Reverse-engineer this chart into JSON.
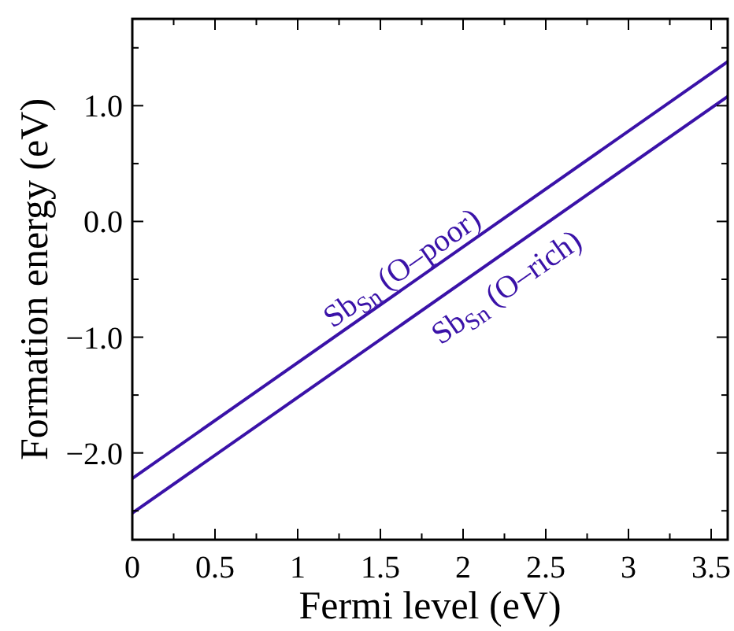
{
  "chart_data": {
    "type": "line",
    "xlabel": "Fermi level (eV)",
    "ylabel": "Formation energy (eV)",
    "x": [
      0,
      3.6
    ],
    "series": [
      {
        "name": "Sb$_{Sn}$ (O–poor)",
        "color": "#3a12a8",
        "values": [
          -2.22,
          1.38
        ]
      },
      {
        "name": "Sb$_{Sn}$ (O–rich)",
        "color": "#3a12a8",
        "values": [
          -2.52,
          1.08
        ]
      }
    ],
    "xlim": [
      0,
      3.6
    ],
    "ylim": [
      -2.75,
      1.75
    ],
    "xticks": [
      0,
      {
        "value": 0.25,
        "label": null
      },
      0.5,
      {
        "value": 0.75,
        "label": null
      },
      1,
      {
        "value": 1.25,
        "label": null
      },
      1.5,
      {
        "value": 1.75,
        "label": null
      },
      2,
      {
        "value": 2.25,
        "label": null
      },
      2.5,
      {
        "value": 2.75,
        "label": null
      },
      3,
      {
        "value": 3.25,
        "label": null
      },
      3.5
    ],
    "yticks": [
      {
        "value": -2.5,
        "label": null
      },
      {
        "value": -2,
        "label": "−2.0"
      },
      {
        "value": -1.5,
        "label": null
      },
      {
        "value": -1,
        "label": "−1.0"
      },
      {
        "value": -0.5,
        "label": null
      },
      {
        "value": 0,
        "label": "0.0"
      },
      {
        "value": 0.5,
        "label": null
      },
      {
        "value": 1,
        "label": "1.0"
      },
      {
        "value": 1.5,
        "label": null
      }
    ],
    "grid": false,
    "marker": "none",
    "line_style": "solid"
  }
}
